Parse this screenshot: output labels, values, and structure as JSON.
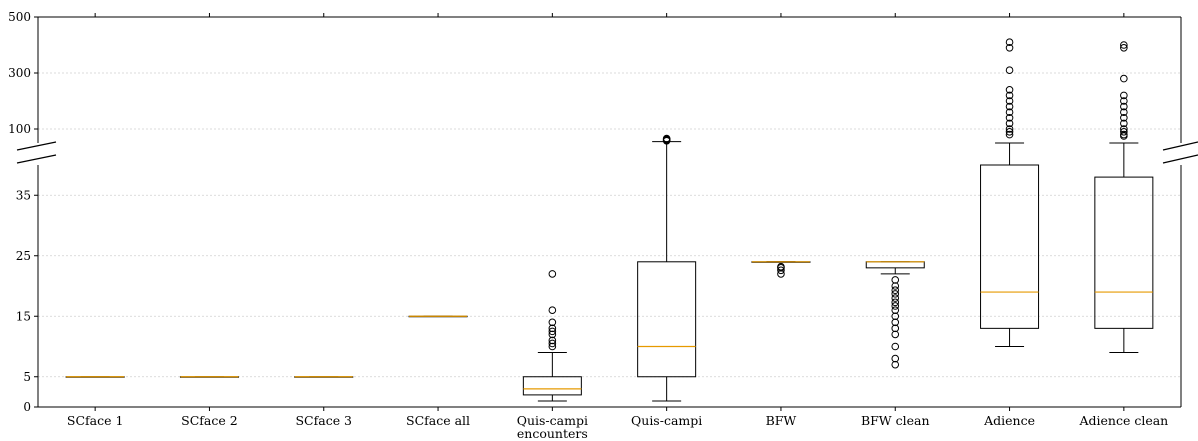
{
  "chart_data": {
    "type": "box",
    "broken_y_axis": true,
    "grid": "horizontal dotted",
    "categories": [
      [
        "SCface 1"
      ],
      [
        "SCface 2"
      ],
      [
        "SCface 3"
      ],
      [
        "SCface all"
      ],
      [
        "Quis-campi",
        "encounters"
      ],
      [
        "Quis-campi"
      ],
      [
        "BFW"
      ],
      [
        "BFW clean"
      ],
      [
        "Adience"
      ],
      [
        "Adience clean"
      ]
    ],
    "boxes": [
      {
        "whisker_low": 5,
        "q1": 5,
        "median": 5,
        "q3": 5,
        "whisker_high": 5,
        "outliers": []
      },
      {
        "whisker_low": 5,
        "q1": 5,
        "median": 5,
        "q3": 5,
        "whisker_high": 5,
        "outliers": []
      },
      {
        "whisker_low": 5,
        "q1": 5,
        "median": 5,
        "q3": 5,
        "whisker_high": 5,
        "outliers": []
      },
      {
        "whisker_low": 15,
        "q1": 15,
        "median": 15,
        "q3": 15,
        "whisker_high": 15,
        "outliers": []
      },
      {
        "whisker_low": 1,
        "q1": 2,
        "median": 3,
        "q3": 5,
        "whisker_high": 9,
        "outliers": [
          10,
          10.5,
          11,
          12,
          12.5,
          13,
          14,
          16,
          22
        ]
      },
      {
        "whisker_low": 1,
        "q1": 5,
        "median": 10,
        "q3": 24,
        "whisker_high": 55,
        "outliers": [
          58,
          60,
          62,
          64,
          66
        ]
      },
      {
        "whisker_low": 24,
        "q1": 24,
        "median": 24,
        "q3": 24,
        "whisker_high": 24,
        "outliers": [
          22,
          22.6,
          23,
          23.2
        ]
      },
      {
        "whisker_low": 22,
        "q1": 23,
        "median": 24,
        "q3": 24,
        "whisker_high": 24,
        "outliers": [
          7,
          8,
          10,
          12,
          13,
          14,
          15,
          16,
          16.7,
          17.3,
          18,
          18.7,
          19.3,
          20,
          21
        ]
      },
      {
        "whisker_low": 10,
        "q1": 13,
        "median": 19,
        "q3": 40,
        "whisker_high": 50,
        "outliers": [
          80,
          90,
          100,
          120,
          140,
          160,
          180,
          200,
          220,
          240,
          310,
          390,
          410
        ]
      },
      {
        "whisker_low": 9,
        "q1": 13,
        "median": 19,
        "q3": 38,
        "whisker_high": 50,
        "outliers": [
          75,
          80,
          90,
          100,
          120,
          140,
          160,
          180,
          200,
          220,
          280,
          390,
          400
        ]
      }
    ],
    "lower_axis": {
      "ylim": [
        0,
        40
      ],
      "ticks": [
        0,
        5,
        15,
        25,
        35
      ]
    },
    "upper_axis": {
      "ylim": [
        50,
        500
      ],
      "ticks": [
        100,
        300,
        500
      ]
    },
    "colors": {
      "median": "#e69a00",
      "box": "#000000",
      "grid": "#d0d0d0"
    }
  }
}
